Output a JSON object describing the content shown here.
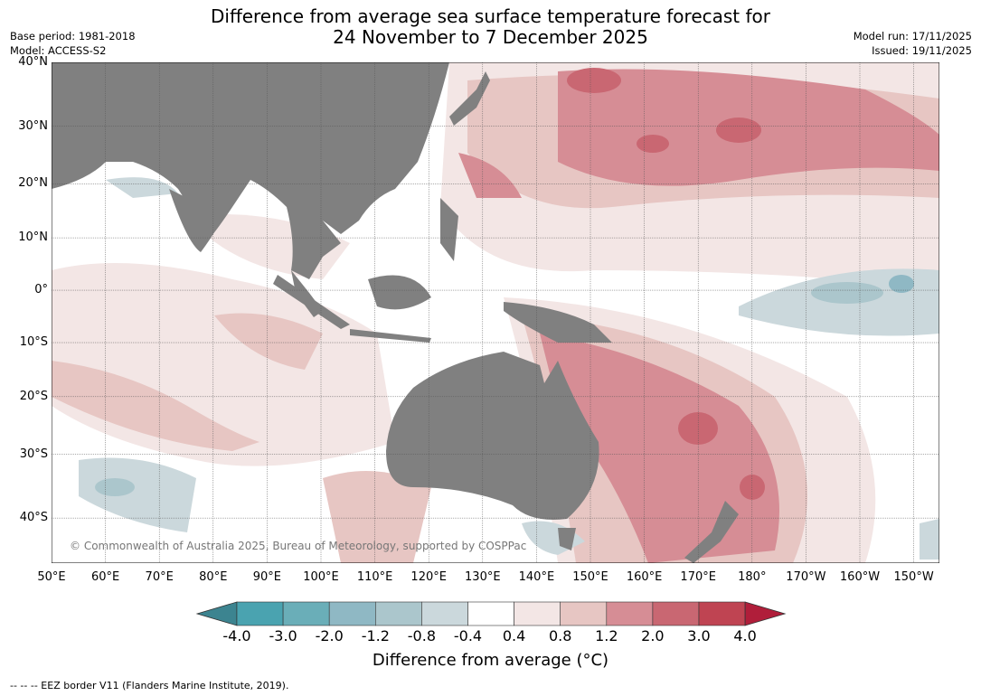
{
  "title_line1": "Difference from average sea surface temperature forecast for",
  "title_line2": "24 November to 7 December 2025",
  "base_period": "Base period: 1981-2018",
  "model": "Model: ACCESS-S2",
  "model_run": "Model run: 17/11/2025",
  "issued": "Issued: 19/11/2025",
  "map": {
    "lat_labels": [
      "40°N",
      "30°N",
      "20°N",
      "10°N",
      "0°",
      "10°S",
      "20°S",
      "30°S",
      "40°S"
    ],
    "lat_values": [
      40,
      30,
      20,
      10,
      0,
      -10,
      -20,
      -30,
      -40
    ],
    "lon_labels": [
      "50°E",
      "60°E",
      "70°E",
      "80°E",
      "90°E",
      "100°E",
      "110°E",
      "120°E",
      "130°E",
      "140°E",
      "150°E",
      "160°E",
      "170°E",
      "180°",
      "170°W",
      "160°W",
      "150°W"
    ],
    "copyright": "© Commonwealth of Australia 2025, Bureau of Meteorology, supported by COSPPac"
  },
  "colorbar": {
    "title": "Difference from average (°C)",
    "labels": [
      "-4.0",
      "-3.0",
      "-2.0",
      "-1.2",
      "-0.8",
      "-0.4",
      "0.4",
      "0.8",
      "1.2",
      "2.0",
      "3.0",
      "4.0"
    ],
    "colors": [
      "#4aa3b0",
      "#6aaeb8",
      "#8fb8c4",
      "#abc6cc",
      "#cbd8dc",
      "#ffffff",
      "#f3e6e5",
      "#e7c6c3",
      "#d68d95",
      "#c96772",
      "#bf4452"
    ],
    "extend_low": "#3c8490",
    "extend_high": "#b01e3a",
    "land": "#808080"
  },
  "footer": "--  --  -- EEZ border V11 (Flanders Marine Institute, 2019)."
}
